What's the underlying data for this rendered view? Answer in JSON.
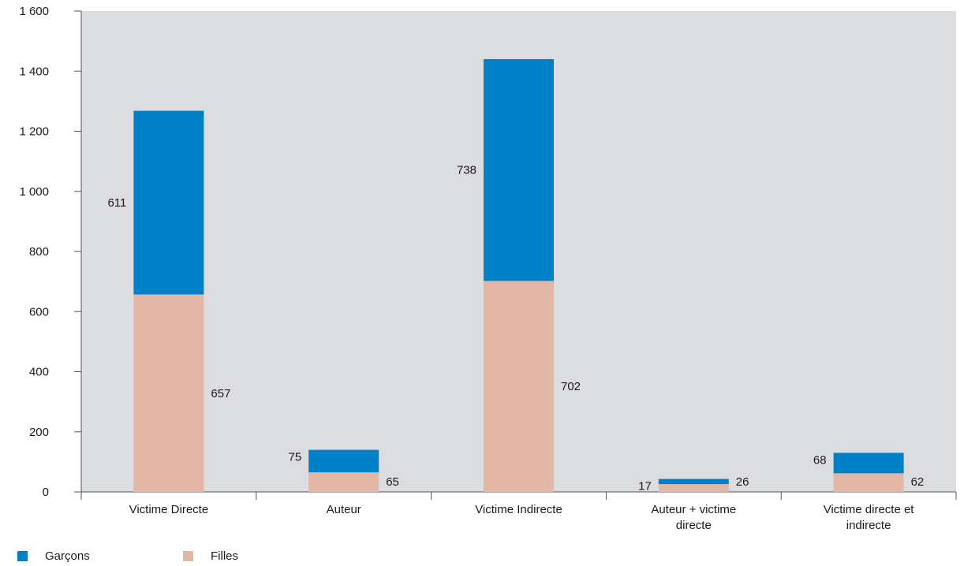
{
  "chart_data": {
    "type": "bar",
    "stacked": true,
    "categories": [
      [
        "Victime Directe"
      ],
      [
        "Auteur"
      ],
      [
        "Victime Indirecte"
      ],
      [
        "Auteur + victime",
        "directe"
      ],
      [
        "Victime directe et",
        "indirecte"
      ]
    ],
    "series": [
      {
        "name": "Filles",
        "color": "#e3b7a6",
        "values": [
          657,
          65,
          702,
          26,
          62
        ]
      },
      {
        "name": "Garçons",
        "color": "#0080c6",
        "values": [
          611,
          75,
          738,
          17,
          68
        ]
      }
    ],
    "ylim": [
      0,
      1600
    ],
    "yticks": [
      0,
      200,
      400,
      600,
      800,
      1000,
      1200,
      1400,
      1600
    ],
    "ytick_labels": [
      "0",
      "200",
      "400",
      "600",
      "800",
      "1 000",
      "1 200",
      "1 400",
      "1 600"
    ],
    "plot_background": "#dcdde0",
    "legend": {
      "position": "bottom-left",
      "order": [
        "Garçons",
        "Filles"
      ]
    }
  },
  "legend": {
    "items": [
      {
        "label": "Garçons",
        "color": "#0080c6"
      },
      {
        "label": "Filles",
        "color": "#e3b7a6"
      }
    ]
  }
}
